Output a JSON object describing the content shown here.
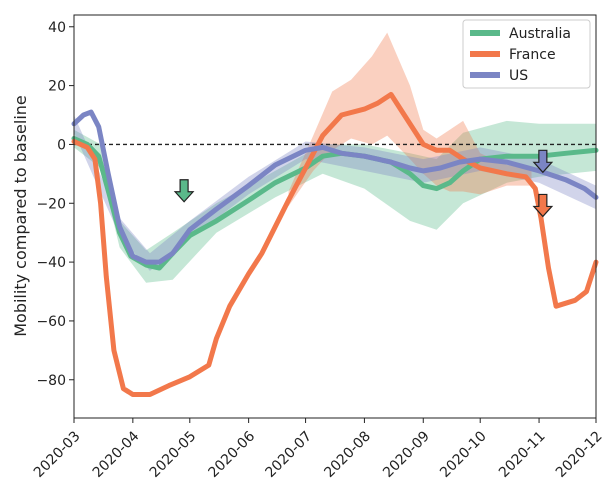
{
  "chart_data": {
    "type": "line",
    "title": "",
    "xlabel": "",
    "ylabel": "Mobility compared to baseline",
    "x_ticks": [
      "2020-03",
      "2020-04",
      "2020-05",
      "2020-06",
      "2020-07",
      "2020-08",
      "2020-09",
      "2020-10",
      "2020-11",
      "2020-12"
    ],
    "y_ticks": [
      40,
      20,
      0,
      -20,
      -40,
      -60,
      -80
    ],
    "xlim": [
      "2020-03-01",
      "2020-12-01"
    ],
    "ylim": [
      -93,
      44
    ],
    "baseline": 0,
    "baseline_style": "dashed",
    "grid": false,
    "legend": {
      "placement": "top-right",
      "entries": [
        "Australia",
        "France",
        "US"
      ]
    },
    "series": [
      {
        "name": "Australia",
        "color": "#5ab98a",
        "points": [
          [
            "2020-03-01",
            2
          ],
          [
            "2020-03-08",
            0
          ],
          [
            "2020-03-14",
            -4
          ],
          [
            "2020-03-20",
            -18
          ],
          [
            "2020-03-25",
            -30
          ],
          [
            "2020-03-31",
            -38
          ],
          [
            "2020-04-08",
            -41
          ],
          [
            "2020-04-15",
            -42
          ],
          [
            "2020-04-22",
            -37
          ],
          [
            "2020-05-01",
            -31
          ],
          [
            "2020-05-15",
            -26
          ],
          [
            "2020-06-01",
            -19
          ],
          [
            "2020-06-15",
            -13
          ],
          [
            "2020-07-01",
            -8
          ],
          [
            "2020-07-10",
            -4
          ],
          [
            "2020-07-20",
            -3
          ],
          [
            "2020-08-01",
            -4
          ],
          [
            "2020-08-15",
            -6
          ],
          [
            "2020-08-25",
            -10
          ],
          [
            "2020-09-01",
            -14
          ],
          [
            "2020-09-08",
            -15
          ],
          [
            "2020-09-15",
            -13
          ],
          [
            "2020-09-22",
            -9
          ],
          [
            "2020-10-01",
            -5
          ],
          [
            "2020-10-15",
            -4
          ],
          [
            "2020-11-01",
            -4
          ],
          [
            "2020-11-15",
            -3
          ],
          [
            "2020-12-01",
            -2
          ]
        ],
        "band": [
          [
            "2020-03-01",
            -1,
            5
          ],
          [
            "2020-03-15",
            -8,
            0
          ],
          [
            "2020-03-25",
            -35,
            -26
          ],
          [
            "2020-04-08",
            -47,
            -36
          ],
          [
            "2020-04-22",
            -46,
            -30
          ],
          [
            "2020-05-15",
            -30,
            -20
          ],
          [
            "2020-06-15",
            -18,
            -9
          ],
          [
            "2020-07-10",
            -10,
            0
          ],
          [
            "2020-08-01",
            -15,
            0
          ],
          [
            "2020-08-25",
            -26,
            -3
          ],
          [
            "2020-09-08",
            -29,
            -5
          ],
          [
            "2020-09-22",
            -20,
            4
          ],
          [
            "2020-10-15",
            -13,
            8
          ],
          [
            "2020-11-01",
            -11,
            7
          ],
          [
            "2020-12-01",
            -9,
            7
          ]
        ]
      },
      {
        "name": "France",
        "color": "#f2784b",
        "points": [
          [
            "2020-03-01",
            1
          ],
          [
            "2020-03-08",
            -1
          ],
          [
            "2020-03-12",
            -5
          ],
          [
            "2020-03-15",
            -20
          ],
          [
            "2020-03-18",
            -45
          ],
          [
            "2020-03-22",
            -70
          ],
          [
            "2020-03-27",
            -83
          ],
          [
            "2020-04-01",
            -85
          ],
          [
            "2020-04-10",
            -85
          ],
          [
            "2020-04-20",
            -82
          ],
          [
            "2020-05-01",
            -79
          ],
          [
            "2020-05-11",
            -75
          ],
          [
            "2020-05-15",
            -66
          ],
          [
            "2020-05-22",
            -55
          ],
          [
            "2020-06-01",
            -44
          ],
          [
            "2020-06-08",
            -37
          ],
          [
            "2020-06-15",
            -28
          ],
          [
            "2020-06-22",
            -19
          ],
          [
            "2020-07-01",
            -8
          ],
          [
            "2020-07-10",
            3
          ],
          [
            "2020-07-20",
            10
          ],
          [
            "2020-08-01",
            12
          ],
          [
            "2020-08-08",
            14
          ],
          [
            "2020-08-15",
            17
          ],
          [
            "2020-08-22",
            10
          ],
          [
            "2020-09-01",
            0
          ],
          [
            "2020-09-08",
            -2
          ],
          [
            "2020-09-15",
            -2
          ],
          [
            "2020-09-22",
            -5
          ],
          [
            "2020-10-01",
            -8
          ],
          [
            "2020-10-15",
            -10
          ],
          [
            "2020-10-25",
            -11
          ],
          [
            "2020-10-30",
            -15
          ],
          [
            "2020-11-02",
            -25
          ],
          [
            "2020-11-06",
            -42
          ],
          [
            "2020-11-10",
            -55
          ],
          [
            "2020-11-20",
            -53
          ],
          [
            "2020-11-26",
            -50
          ],
          [
            "2020-12-01",
            -40
          ]
        ],
        "band": [
          [
            "2020-06-22",
            -21,
            -16
          ],
          [
            "2020-07-05",
            -9,
            3
          ],
          [
            "2020-07-15",
            -2,
            18
          ],
          [
            "2020-07-25",
            2,
            22
          ],
          [
            "2020-08-05",
            0,
            30
          ],
          [
            "2020-08-13",
            3,
            38
          ],
          [
            "2020-08-25",
            -5,
            20
          ],
          [
            "2020-09-01",
            -10,
            5
          ],
          [
            "2020-09-08",
            -14,
            2
          ],
          [
            "2020-09-15",
            -16,
            5
          ],
          [
            "2020-09-22",
            -16,
            8
          ],
          [
            "2020-10-01",
            -17,
            -3
          ],
          [
            "2020-10-15",
            -14,
            -7
          ],
          [
            "2020-10-28",
            -14,
            -8
          ]
        ]
      },
      {
        "name": "US",
        "color": "#7b85c4",
        "points": [
          [
            "2020-03-01",
            7
          ],
          [
            "2020-03-06",
            10
          ],
          [
            "2020-03-10",
            11
          ],
          [
            "2020-03-14",
            6
          ],
          [
            "2020-03-19",
            -10
          ],
          [
            "2020-03-25",
            -28
          ],
          [
            "2020-04-01",
            -38
          ],
          [
            "2020-04-08",
            -40
          ],
          [
            "2020-04-15",
            -40
          ],
          [
            "2020-04-22",
            -37
          ],
          [
            "2020-05-01",
            -29
          ],
          [
            "2020-05-15",
            -22
          ],
          [
            "2020-06-01",
            -14
          ],
          [
            "2020-06-15",
            -7
          ],
          [
            "2020-07-01",
            -2
          ],
          [
            "2020-07-10",
            -1
          ],
          [
            "2020-07-20",
            -3
          ],
          [
            "2020-08-01",
            -4
          ],
          [
            "2020-08-15",
            -6
          ],
          [
            "2020-08-25",
            -8
          ],
          [
            "2020-09-01",
            -9
          ],
          [
            "2020-09-10",
            -8
          ],
          [
            "2020-09-20",
            -6
          ],
          [
            "2020-10-01",
            -5
          ],
          [
            "2020-10-15",
            -6
          ],
          [
            "2020-11-01",
            -9
          ],
          [
            "2020-11-15",
            -12
          ],
          [
            "2020-11-25",
            -15
          ],
          [
            "2020-12-01",
            -18
          ]
        ],
        "band": [
          [
            "2020-03-01",
            4,
            10
          ],
          [
            "2020-03-25",
            -31,
            -25
          ],
          [
            "2020-04-10",
            -43,
            -37
          ],
          [
            "2020-05-01",
            -32,
            -26
          ],
          [
            "2020-06-01",
            -17,
            -11
          ],
          [
            "2020-07-01",
            -5,
            1
          ],
          [
            "2020-08-01",
            -9,
            -1
          ],
          [
            "2020-09-01",
            -13,
            -5
          ],
          [
            "2020-10-01",
            -9,
            -1
          ],
          [
            "2020-11-01",
            -13,
            -5
          ],
          [
            "2020-12-01",
            -22,
            -14
          ]
        ]
      }
    ],
    "markers": [
      {
        "type": "down-arrow",
        "color": "#5ab98a",
        "x": "2020-04-28",
        "y": -12
      },
      {
        "type": "down-arrow",
        "color": "#7b85c4",
        "x": "2020-11-03",
        "y": -2
      },
      {
        "type": "down-arrow",
        "color": "#f2784b",
        "x": "2020-11-03",
        "y": -17
      }
    ]
  }
}
